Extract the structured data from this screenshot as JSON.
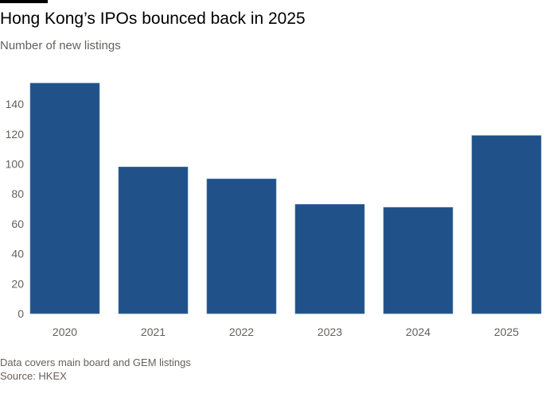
{
  "chart_data": {
    "type": "bar",
    "title": "Hong Kong’s IPOs bounced back in 2025",
    "subtitle": "Number of new listings",
    "categories": [
      "2020",
      "2021",
      "2022",
      "2023",
      "2024",
      "2025"
    ],
    "values": [
      154,
      98,
      90,
      73,
      71,
      119
    ],
    "ylim": [
      0,
      160
    ],
    "yticks": [
      0,
      20,
      40,
      60,
      80,
      100,
      120,
      140
    ],
    "grid": false,
    "bar_color": "#205289",
    "xlabel": "",
    "ylabel": ""
  },
  "footer": {
    "note": "Data covers main board and GEM listings",
    "source": "Source: HKEX"
  }
}
